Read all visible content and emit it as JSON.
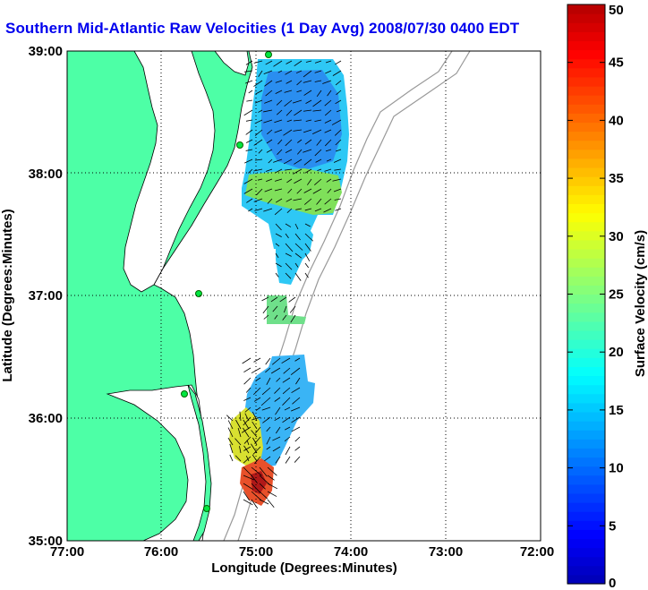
{
  "title": "Southern Mid-Atlantic Raw Velocities (1 Day Avg) 2008/07/30 0400 EDT",
  "map": {
    "xlabel": "Longitude (Degrees:Minutes)",
    "ylabel": "Latitude (Degrees:Minutes)",
    "lon_ticks": [
      "77:00",
      "76:00",
      "75:00",
      "74:00",
      "73:00",
      "72:00"
    ],
    "lat_ticks": [
      "39:00",
      "38:00",
      "37:00",
      "36:00",
      "35:00"
    ],
    "lon_range": [
      -77,
      -72
    ],
    "lat_range": [
      35,
      39
    ],
    "grid": "dotted",
    "land_color": "#4dffa6",
    "water_color": "#ffffff"
  },
  "colorbar": {
    "label": "Surface Velocity (cm/s)",
    "ticks": [
      "0",
      "5",
      "10",
      "15",
      "20",
      "25",
      "30",
      "35",
      "40",
      "45",
      "50"
    ],
    "range": [
      0,
      50
    ],
    "colormap": "jet"
  },
  "chart_data": {
    "type": "heatmap",
    "title": "Southern Mid-Atlantic Raw Velocities (1 Day Avg) 2008/07/30 0400 EDT",
    "xlabel": "Longitude (Degrees:Minutes)",
    "ylabel": "Latitude (Degrees:Minutes)",
    "xlim": [
      -77,
      -72
    ],
    "ylim": [
      35,
      39
    ],
    "color_label": "Surface Velocity (cm/s)",
    "color_range": [
      0,
      50
    ],
    "regions": [
      {
        "name_hint": "north-field",
        "lon": [
          -75.1,
          -74.1
        ],
        "lat": [
          37.7,
          39.0
        ],
        "speed_cm_s": 8
      },
      {
        "name_hint": "north-field-south-edge",
        "lon": [
          -75.0,
          -74.2
        ],
        "lat": [
          37.5,
          37.9
        ],
        "speed_cm_s": 18
      },
      {
        "name_hint": "central-strip",
        "lon": [
          -75.0,
          -74.4
        ],
        "lat": [
          37.1,
          37.6
        ],
        "speed_cm_s": 11
      },
      {
        "name_hint": "mid-patch",
        "lon": [
          -74.9,
          -74.6
        ],
        "lat": [
          36.7,
          37.0
        ],
        "speed_cm_s": 17
      },
      {
        "name_hint": "south-field",
        "lon": [
          -75.2,
          -74.5
        ],
        "lat": [
          35.7,
          36.5
        ],
        "speed_cm_s": 11
      },
      {
        "name_hint": "cape-hatteras-shelf",
        "lon": [
          -75.3,
          -74.9
        ],
        "lat": [
          35.7,
          36.1
        ],
        "speed_cm_s": 24
      },
      {
        "name_hint": "hatteras-jet",
        "lon": [
          -75.1,
          -74.8
        ],
        "lat": [
          35.3,
          35.6
        ],
        "speed_cm_s": 42
      }
    ]
  }
}
